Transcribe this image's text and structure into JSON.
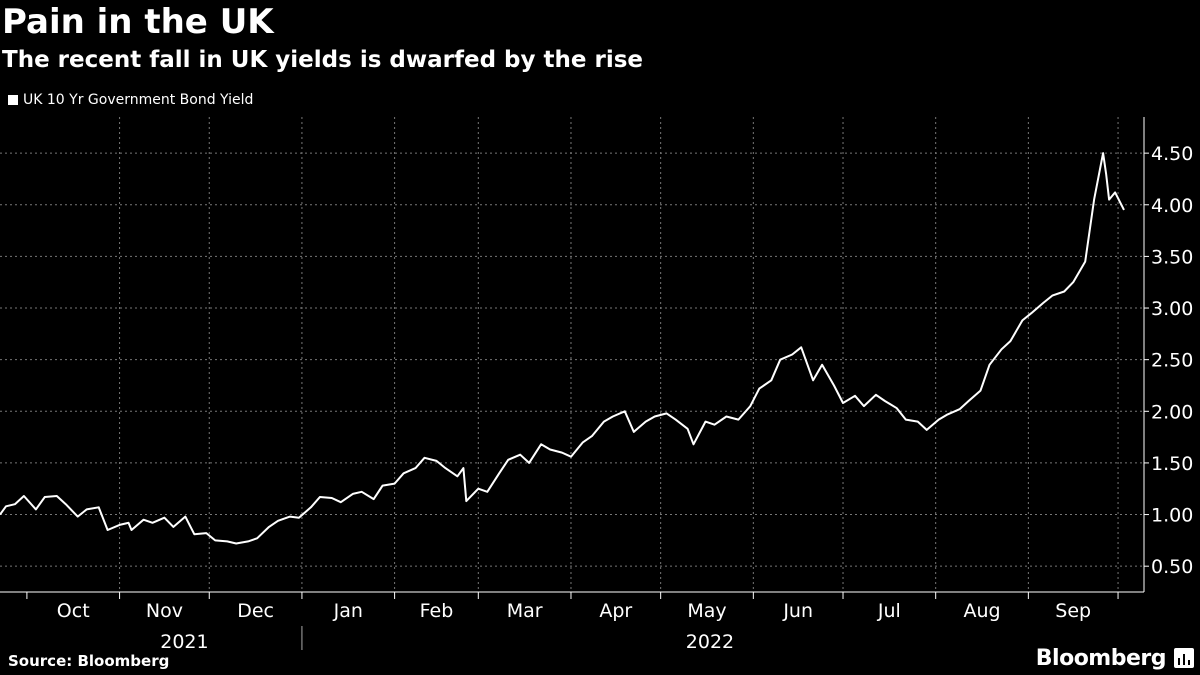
{
  "header": {
    "title": "Pain in the UK",
    "subtitle": "The recent fall in UK yields is dwarfed by the rise"
  },
  "footer": {
    "source": "Source: Bloomberg",
    "brand": "Bloomberg"
  },
  "colors": {
    "background": "#000000",
    "line": "#ffffff",
    "grid": "#777777",
    "text": "#ffffff"
  },
  "icons": {
    "brand": "bloomberg-terminal-icon"
  },
  "chart_data": {
    "type": "line",
    "title": "Pain in the UK",
    "subtitle": "The recent fall in UK yields is dwarfed by the rise",
    "xlabel": "",
    "ylabel": "",
    "ylim": [
      0.25,
      4.85
    ],
    "xlim": [
      "2021-09-22",
      "2022-10-05"
    ],
    "y_ticks": [
      "0.50",
      "1.00",
      "1.50",
      "2.00",
      "2.50",
      "3.00",
      "3.50",
      "4.00",
      "4.50"
    ],
    "month_ticks": [
      "Oct",
      "Nov",
      "Dec",
      "Jan",
      "Feb",
      "Mar",
      "Apr",
      "May",
      "Jun",
      "Jul",
      "Aug",
      "Sep"
    ],
    "year_labels": [
      "2021",
      "2022"
    ],
    "grid": true,
    "legend_position": "top-left",
    "series": [
      {
        "name": "UK 10 Yr Government Bond Yield",
        "x": [
          "2021-09-22",
          "2021-09-24",
          "2021-09-27",
          "2021-09-30",
          "2021-10-04",
          "2021-10-07",
          "2021-10-11",
          "2021-10-14",
          "2021-10-18",
          "2021-10-21",
          "2021-10-25",
          "2021-10-28",
          "2021-11-01",
          "2021-11-04",
          "2021-11-05",
          "2021-11-09",
          "2021-11-12",
          "2021-11-16",
          "2021-11-19",
          "2021-11-23",
          "2021-11-26",
          "2021-11-30",
          "2021-12-03",
          "2021-12-07",
          "2021-12-10",
          "2021-12-14",
          "2021-12-17",
          "2021-12-21",
          "2021-12-24",
          "2021-12-28",
          "2021-12-31",
          "2022-01-04",
          "2022-01-07",
          "2022-01-11",
          "2022-01-14",
          "2022-01-18",
          "2022-01-21",
          "2022-01-25",
          "2022-01-28",
          "2022-02-01",
          "2022-02-04",
          "2022-02-08",
          "2022-02-11",
          "2022-02-15",
          "2022-02-18",
          "2022-02-22",
          "2022-02-24",
          "2022-02-25",
          "2022-03-01",
          "2022-03-04",
          "2022-03-08",
          "2022-03-11",
          "2022-03-15",
          "2022-03-18",
          "2022-03-22",
          "2022-03-25",
          "2022-03-29",
          "2022-04-01",
          "2022-04-05",
          "2022-04-08",
          "2022-04-12",
          "2022-04-15",
          "2022-04-19",
          "2022-04-22",
          "2022-04-26",
          "2022-04-29",
          "2022-05-03",
          "2022-05-06",
          "2022-05-10",
          "2022-05-12",
          "2022-05-16",
          "2022-05-19",
          "2022-05-23",
          "2022-05-27",
          "2022-05-31",
          "2022-06-03",
          "2022-06-07",
          "2022-06-10",
          "2022-06-14",
          "2022-06-17",
          "2022-06-21",
          "2022-06-24",
          "2022-06-28",
          "2022-07-01",
          "2022-07-05",
          "2022-07-08",
          "2022-07-12",
          "2022-07-15",
          "2022-07-19",
          "2022-07-22",
          "2022-07-26",
          "2022-07-29",
          "2022-08-02",
          "2022-08-05",
          "2022-08-09",
          "2022-08-12",
          "2022-08-16",
          "2022-08-19",
          "2022-08-23",
          "2022-08-26",
          "2022-08-30",
          "2022-09-02",
          "2022-09-06",
          "2022-09-09",
          "2022-09-13",
          "2022-09-16",
          "2022-09-20",
          "2022-09-23",
          "2022-09-26",
          "2022-09-27",
          "2022-09-28",
          "2022-09-30",
          "2022-10-03"
        ],
        "values": [
          1.0,
          1.08,
          1.1,
          1.18,
          1.05,
          1.17,
          1.18,
          1.1,
          0.98,
          1.05,
          1.07,
          0.85,
          0.9,
          0.92,
          0.85,
          0.95,
          0.92,
          0.97,
          0.88,
          0.98,
          0.81,
          0.82,
          0.75,
          0.74,
          0.72,
          0.74,
          0.77,
          0.88,
          0.94,
          0.98,
          0.97,
          1.07,
          1.17,
          1.16,
          1.12,
          1.2,
          1.22,
          1.15,
          1.28,
          1.3,
          1.4,
          1.45,
          1.55,
          1.52,
          1.45,
          1.37,
          1.45,
          1.13,
          1.25,
          1.22,
          1.4,
          1.53,
          1.58,
          1.5,
          1.68,
          1.63,
          1.6,
          1.56,
          1.7,
          1.76,
          1.9,
          1.95,
          2.0,
          1.8,
          1.9,
          1.95,
          1.98,
          1.92,
          1.83,
          1.68,
          1.9,
          1.87,
          1.95,
          1.92,
          2.05,
          2.22,
          2.3,
          2.5,
          2.55,
          2.62,
          2.3,
          2.45,
          2.25,
          2.08,
          2.15,
          2.05,
          2.16,
          2.1,
          2.03,
          1.92,
          1.9,
          1.82,
          1.92,
          1.97,
          2.02,
          2.1,
          2.2,
          2.45,
          2.6,
          2.68,
          2.88,
          2.95,
          3.05,
          3.12,
          3.16,
          3.25,
          3.45,
          4.05,
          4.5,
          4.3,
          4.05,
          4.12,
          3.95
        ]
      }
    ]
  }
}
